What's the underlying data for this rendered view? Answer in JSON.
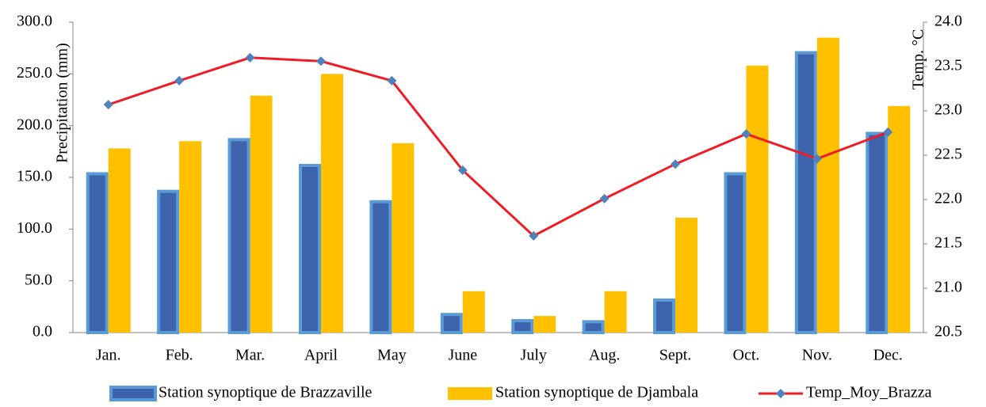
{
  "chart_data": {
    "type": "bar",
    "y_label": "Precipitation (mm)",
    "y2_label": "Temp. °C",
    "categories": [
      "Jan.",
      "Feb.",
      "Mar.",
      "April",
      "May",
      "June",
      "July",
      "Aug.",
      "Sept.",
      "Oct.",
      "Nov.",
      "Dec."
    ],
    "series": [
      {
        "name": "Station synoptique de Brazzaville",
        "color": "#3e64ad",
        "edge_color": "#5b9bd5",
        "type": "bar",
        "values": [
          155,
          138,
          188,
          163,
          128,
          19,
          13,
          12,
          33,
          155,
          272,
          194
        ]
      },
      {
        "name": "Station synoptique de Djambala",
        "color": "#ffc000",
        "type": "bar",
        "values": [
          178,
          185,
          229,
          250,
          183,
          40,
          16,
          40,
          111,
          258,
          285,
          219
        ]
      },
      {
        "name": "Temp_Moy_Brazza",
        "color": "#ee1c25",
        "marker_color": "#4f81bd",
        "type": "line",
        "axis": "y2",
        "values": [
          23.07,
          23.34,
          23.6,
          23.56,
          23.34,
          22.33,
          21.59,
          22.01,
          22.4,
          22.74,
          22.46,
          22.76
        ]
      }
    ],
    "ylim": [
      0,
      300
    ],
    "yticks": [
      {
        "value": 0,
        "label": "0.0"
      },
      {
        "value": 50,
        "label": "50.0"
      },
      {
        "value": 100,
        "label": "100.0"
      },
      {
        "value": 150,
        "label": "150.0"
      },
      {
        "value": 200,
        "label": "200.0"
      },
      {
        "value": 250,
        "label": "250.0"
      },
      {
        "value": 300,
        "label": "300.0"
      }
    ],
    "y2lim": [
      20.5,
      24
    ],
    "y2ticks": [
      20.5,
      {
        "value": 21,
        "label": "21.0"
      },
      21.5,
      {
        "value": 22,
        "label": "22.0"
      },
      22.5,
      {
        "value": 23,
        "label": "23.0"
      },
      23.5,
      {
        "value": 24,
        "label": "24.0"
      }
    ],
    "grid": false,
    "legend": "bottom"
  }
}
